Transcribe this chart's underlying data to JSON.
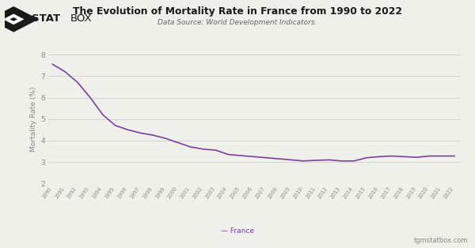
{
  "title": "The Evolution of Mortality Rate in France from 1990 to 2022",
  "subtitle": "Data Source: World Development Indicators.",
  "ylabel": "Mortality Rate (%)",
  "legend_label": "France",
  "footer_right": "tgmstatbox.com",
  "line_color": "#7B3FA0",
  "background_color": "#f0f0eb",
  "grid_color": "#d0d0cc",
  "tick_color": "#888888",
  "ylim": [
    2,
    8
  ],
  "yticks": [
    2,
    3,
    4,
    5,
    6,
    7,
    8
  ],
  "years": [
    1990,
    1991,
    1992,
    1993,
    1994,
    1995,
    1996,
    1997,
    1998,
    1999,
    2000,
    2001,
    2002,
    2003,
    2004,
    2005,
    2006,
    2007,
    2008,
    2009,
    2010,
    2011,
    2012,
    2013,
    2014,
    2015,
    2016,
    2017,
    2018,
    2019,
    2020,
    2021,
    2022
  ],
  "values": [
    7.55,
    7.2,
    6.7,
    6.0,
    5.2,
    4.7,
    4.5,
    4.35,
    4.25,
    4.1,
    3.9,
    3.7,
    3.6,
    3.55,
    3.35,
    3.3,
    3.25,
    3.2,
    3.15,
    3.1,
    3.05,
    3.08,
    3.1,
    3.05,
    3.05,
    3.2,
    3.25,
    3.28,
    3.25,
    3.22,
    3.28,
    3.28,
    3.28
  ]
}
